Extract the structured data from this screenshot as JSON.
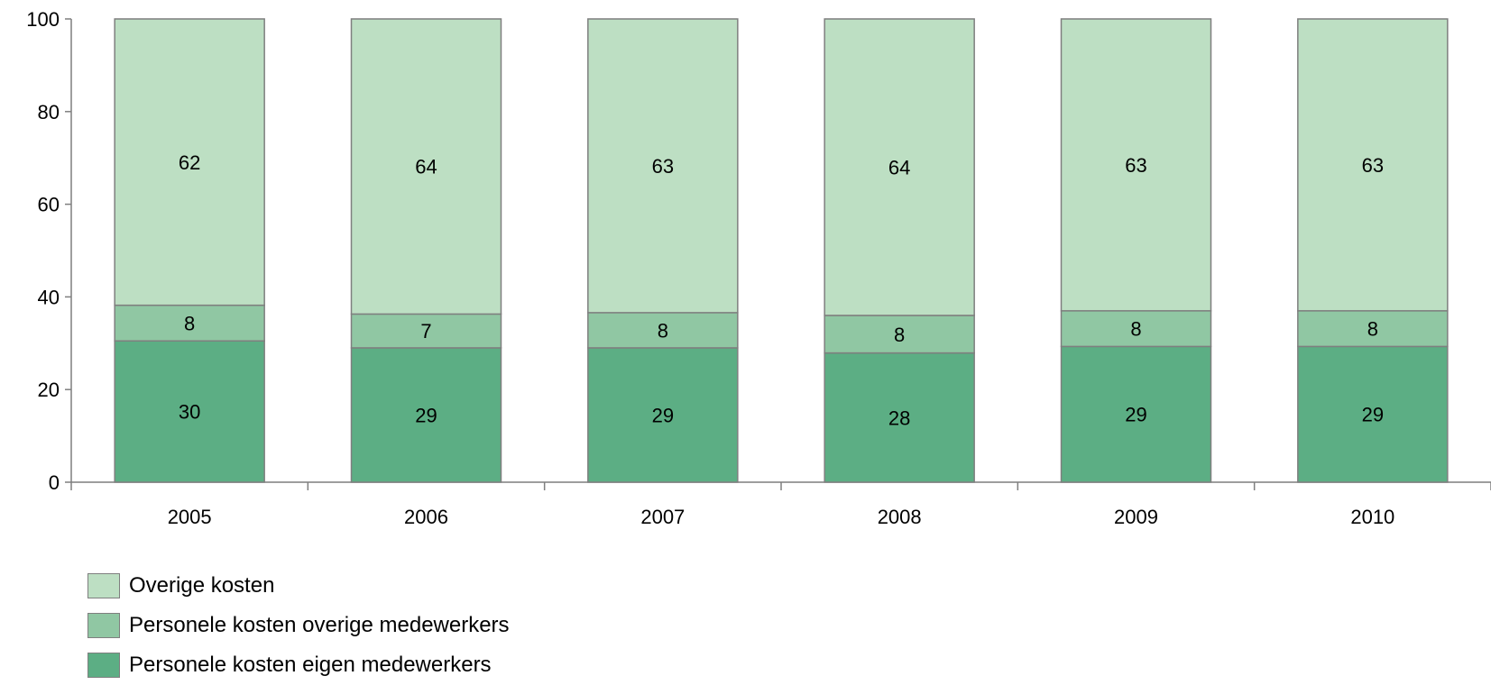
{
  "chart_data": {
    "type": "bar",
    "stacked": true,
    "categories": [
      "2005",
      "2006",
      "2007",
      "2008",
      "2009",
      "2010"
    ],
    "series": [
      {
        "name": "Personele kosten eigen medewerkers",
        "values": [
          30,
          29,
          29,
          28,
          29,
          29
        ],
        "color": "#5cae84"
      },
      {
        "name": "Personele kosten overige medewerkers",
        "values": [
          8,
          7,
          8,
          8,
          8,
          8
        ],
        "color": "#90c7a3"
      },
      {
        "name": "Overige kosten",
        "values": [
          62,
          64,
          63,
          64,
          63,
          63
        ],
        "color": "#bddfc3"
      }
    ],
    "segment_values": [
      [
        30.5,
        7.7,
        61.8
      ],
      [
        29.0,
        7.3,
        63.7
      ],
      [
        29.0,
        7.6,
        63.4
      ],
      [
        27.9,
        8.1,
        64.0
      ],
      [
        29.3,
        7.7,
        63.0
      ],
      [
        29.3,
        7.7,
        63.0
      ]
    ],
    "ylim": [
      0,
      100
    ],
    "yticks": [
      0,
      20,
      40,
      60,
      80,
      100
    ],
    "ytick_labels": [
      "0",
      "20",
      "40",
      "60",
      "80",
      "100"
    ],
    "legend_position": "bottom-left",
    "legend_order": [
      "Overige kosten",
      "Personele kosten overige medewerkers",
      "Personele kosten eigen medewerkers"
    ],
    "grid": false
  }
}
